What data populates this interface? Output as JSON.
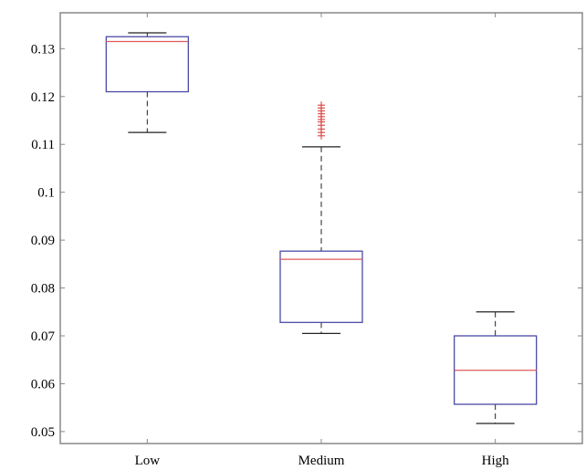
{
  "chart_data": {
    "type": "box",
    "title": "",
    "xlabel": "",
    "ylabel": "",
    "categories": [
      "Low",
      "Medium",
      "High"
    ],
    "ylim": [
      0.0475,
      0.1375
    ],
    "yticks": [
      0.05,
      0.06,
      0.07,
      0.08,
      0.09,
      0.1,
      0.11,
      0.12,
      0.13
    ],
    "ytick_labels": [
      "0.05",
      "0.06",
      "0.07",
      "0.08",
      "0.09",
      "0.1",
      "0.11",
      "0.12",
      "0.13"
    ],
    "grid": false,
    "boxes": [
      {
        "category": "Low",
        "whisker_low": 0.1125,
        "q1": 0.121,
        "median": 0.1315,
        "q3": 0.1325,
        "whisker_high": 0.1333,
        "outliers": []
      },
      {
        "category": "Medium",
        "whisker_low": 0.0705,
        "q1": 0.0728,
        "median": 0.086,
        "q3": 0.0877,
        "whisker_high": 0.1095,
        "outliers": [
          0.1118,
          0.1125,
          0.1132,
          0.114,
          0.1147,
          0.1152,
          0.1158,
          0.1164,
          0.117,
          0.1176,
          0.1182
        ]
      },
      {
        "category": "High",
        "whisker_low": 0.0517,
        "q1": 0.0557,
        "median": 0.0628,
        "q3": 0.07,
        "whisker_high": 0.075,
        "outliers": []
      }
    ],
    "colors": {
      "box": "#4a4aa8",
      "median": "#e05a5a",
      "whisker": "#222222",
      "outlier": "#d9534f",
      "axis": "#888888"
    }
  }
}
